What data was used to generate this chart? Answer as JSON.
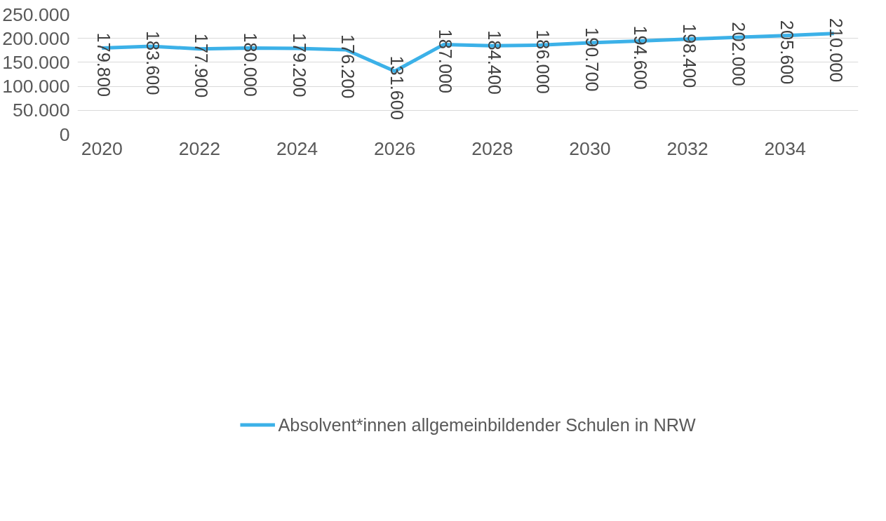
{
  "chart_data": {
    "type": "line",
    "x": [
      2020,
      2021,
      2022,
      2023,
      2024,
      2025,
      2026,
      2027,
      2028,
      2029,
      2030,
      2031,
      2032,
      2033,
      2034,
      2035
    ],
    "series": [
      {
        "name": "Absolvent*innen allgemeinbildender Schulen in NRW",
        "color": "#3cb1e8",
        "values": [
          179800,
          183600,
          177900,
          180000,
          179200,
          176200,
          131600,
          187000,
          184400,
          186000,
          190700,
          194600,
          198400,
          202000,
          205600,
          210000
        ],
        "value_labels": [
          "179.800",
          "183.600",
          "177.900",
          "180.000",
          "179.200",
          "176.200",
          "131.600",
          "187.000",
          "184.400",
          "186.000",
          "190.700",
          "194.600",
          "198.400",
          "202.000",
          "205.600",
          "210.000"
        ]
      }
    ],
    "xlim": [
      2019.5,
      2035.5
    ],
    "xticks": [
      2020,
      2022,
      2024,
      2026,
      2028,
      2030,
      2032,
      2034
    ],
    "ylim": [
      0,
      250000
    ],
    "yticks": [
      {
        "value": 0,
        "label": "0"
      },
      {
        "value": 50000,
        "label": "50.000"
      },
      {
        "value": 100000,
        "label": "100.000"
      },
      {
        "value": 150000,
        "label": "150.000"
      },
      {
        "value": 200000,
        "label": "200.000"
      },
      {
        "value": 250000,
        "label": "250.000"
      }
    ],
    "grid": "y",
    "legend": "bottom",
    "marker": "none",
    "line_style": "solid"
  }
}
